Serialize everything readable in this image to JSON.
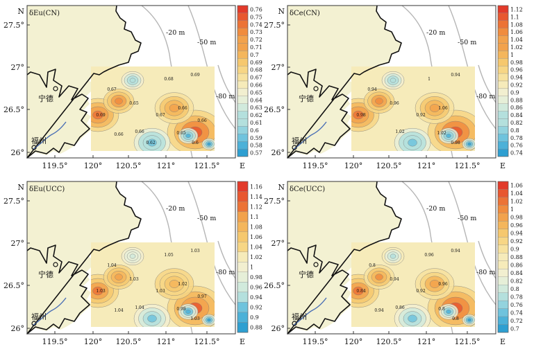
{
  "panels": [
    {
      "key": "eu_cn",
      "title": "δEu(CN)",
      "legend": [
        "0.76",
        "0.75",
        "0.74",
        "0.73",
        "0.72",
        "0.71",
        "0.7",
        "0.69",
        "0.68",
        "0.67",
        "0.66",
        "0.65",
        "0.64",
        "0.63",
        "0.62",
        "0.61",
        "0.6",
        "0.59",
        "0.58",
        "0.57"
      ],
      "contour_labels": [
        "0.67",
        "0.65",
        "0.69",
        "0.68",
        "0.69",
        "0.67",
        "0.66",
        "0.66",
        "0.65",
        "0.6",
        "0.66",
        "0.66",
        "0.62"
      ]
    },
    {
      "key": "ce_cn",
      "title": "δCe(CN)",
      "legend": [
        "1.12",
        "1.1",
        "1.08",
        "1.06",
        "1.04",
        "1.02",
        "1",
        "0.98",
        "0.96",
        "0.94",
        "0.92",
        "0.9",
        "0.88",
        "0.86",
        "0.84",
        "0.82",
        "0.8",
        "0.78",
        "0.76",
        "0.74"
      ],
      "contour_labels": [
        "0.94",
        "0.96",
        "0.98",
        "1",
        "0.94",
        "0.92",
        "1.06",
        "1.02",
        "1.02",
        "0.98"
      ]
    },
    {
      "key": "eu_ucc",
      "title": "δEu(UCC)",
      "legend": [
        "1.16",
        "1.14",
        "1.12",
        "1.1",
        "1.08",
        "1.06",
        "1.04",
        "1.02",
        "1",
        "0.98",
        "0.96",
        "0.94",
        "0.92",
        "0.9",
        "0.88"
      ],
      "contour_labels": [
        "1.04",
        "1.03",
        "1.03",
        "1.05",
        "1.03",
        "1.03",
        "1.02",
        "1.04",
        "0.98",
        "1.03",
        "1.04",
        "0.97"
      ]
    },
    {
      "key": "ce_ucc",
      "title": "δCe(UCC)",
      "legend": [
        "1.06",
        "1.04",
        "1.02",
        "1",
        "0.98",
        "0.96",
        "0.94",
        "0.92",
        "0.9",
        "0.88",
        "0.86",
        "0.84",
        "0.82",
        "0.8",
        "0.78",
        "0.76",
        "0.74",
        "0.72",
        "0.7"
      ],
      "contour_labels": [
        "0.8",
        "0.94",
        "0.84",
        "0.96",
        "0.94",
        "0.92",
        "0.96",
        "0.86",
        "0.8",
        "0.8",
        "0.94"
      ]
    }
  ],
  "axes": {
    "north_label": "N",
    "east_label": "E",
    "lon_ticks": [
      "119.5°",
      "120°",
      "120.5°",
      "121°",
      "121.5°"
    ],
    "lat_ticks": [
      "27.5°",
      "27°",
      "26.5°",
      "26°"
    ]
  },
  "map_labels": {
    "depth_20": "-20 m",
    "depth_50": "-50 m",
    "depth_80": "-80 m",
    "city_ningde": "宁德",
    "city_fuzhou": "福州"
  },
  "colors": {
    "land": "#f3f1d2",
    "sea": "#ffffff",
    "isobath": "#b5b5b5",
    "coast": "#111111",
    "river": "#4a6fb5"
  }
}
